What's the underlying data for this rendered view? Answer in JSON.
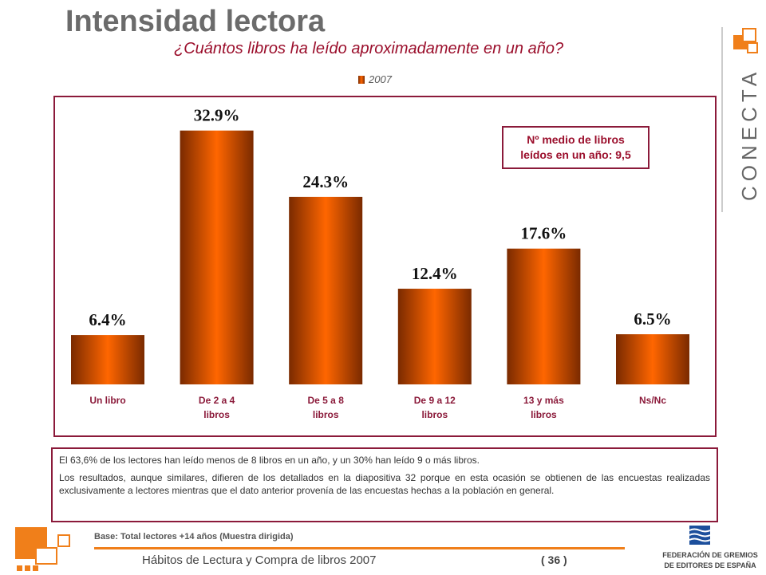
{
  "header": {
    "title": "Intensidad lectora",
    "subtitle": "¿Cuántos libros ha leído aproximadamente en un año?"
  },
  "brand": {
    "text": "CONECTA"
  },
  "average_box": {
    "line1": "Nº medio de libros",
    "line2": "leídos en un año: 9,5"
  },
  "notes": {
    "p1": "El 63,6% de los lectores han leído menos de 8 libros en un año, y un 30% han leído 9 o más libros.",
    "p2": "Los resultados, aunque similares, difieren de los detallados en la diapositiva 32 porque en esta ocasión se obtienen de las encuestas realizadas exclusivamente a lectores mientras que el dato anterior provenía de las encuestas hechas a la población en general."
  },
  "base": "Base: Total lectores +14 años (Muestra dirigida)",
  "footer": {
    "left": "Hábitos de Lectura y Compra de libros 2007",
    "page": "( 36 )"
  },
  "federation": {
    "line1": "FEDERACIÓN DE GREMIOS",
    "line2": "DE EDITORES DE ESPAÑA"
  },
  "colors": {
    "accent": "#9b0f2c",
    "bar_center": "#ff6600",
    "bar_edge": "#7a2a00",
    "footer_line": "#f07f1a"
  },
  "chart_data": {
    "type": "bar",
    "categories": [
      [
        "Un libro"
      ],
      [
        "De 2 a 4",
        "libros"
      ],
      [
        "De 5 a 8",
        "libros"
      ],
      [
        "De 9 a 12",
        "libros"
      ],
      [
        "13 y más",
        "libros"
      ],
      [
        "Ns/Nc"
      ]
    ],
    "series": [
      {
        "name": "2007",
        "values": [
          6.4,
          32.9,
          24.3,
          12.4,
          17.6,
          6.5
        ]
      }
    ],
    "data_labels": [
      "6.4%",
      "32.9%",
      "24.3%",
      "12.4%",
      "17.6%",
      "6.5%"
    ],
    "ylim": [
      0,
      40
    ],
    "legend": "top-center",
    "grid": false
  }
}
